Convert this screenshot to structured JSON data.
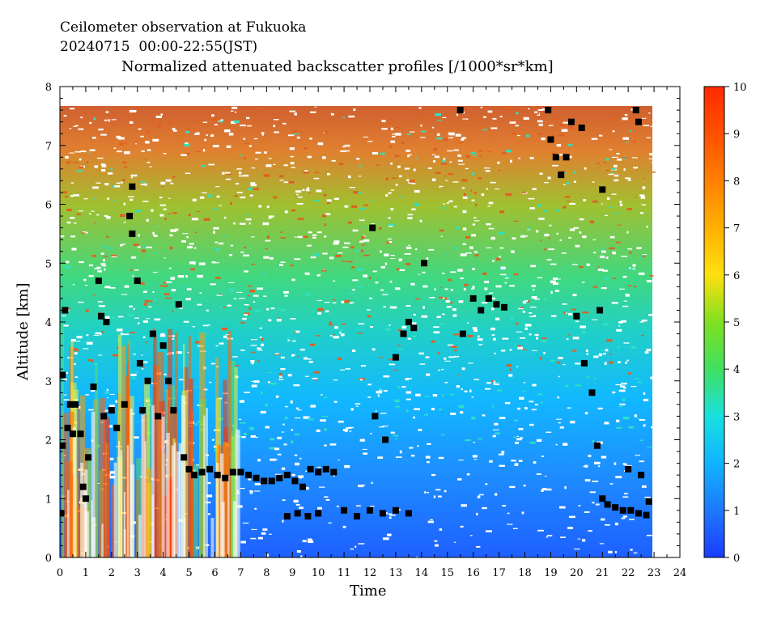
{
  "chart_data": {
    "type": "heatmap",
    "title_lines": [
      "Ceilometer observation at Fukuoka",
      "20240715  00:00-22:55(JST)",
      "Normalized attenuated backscatter profiles [/1000*sr*km]"
    ],
    "xlabel": "Time",
    "ylabel": "Altitude [km]",
    "xlim": [
      0,
      24
    ],
    "ylim": [
      0,
      8
    ],
    "x_ticks": [
      "0",
      "1",
      "2",
      "3",
      "4",
      "5",
      "6",
      "7",
      "8",
      "9",
      "10",
      "11",
      "12",
      "13",
      "14",
      "15",
      "16",
      "17",
      "18",
      "19",
      "20",
      "21",
      "22",
      "23",
      "24"
    ],
    "y_ticks": [
      "0",
      "1",
      "2",
      "3",
      "4",
      "5",
      "6",
      "7",
      "8"
    ],
    "colorbar": {
      "min": 0,
      "max": 10,
      "ticks": [
        "0",
        "1",
        "2",
        "3",
        "4",
        "5",
        "6",
        "7",
        "8",
        "9",
        "10"
      ],
      "colors": [
        "#1a3cff",
        "#1e78ff",
        "#10b4ff",
        "#19e0e0",
        "#40e060",
        "#80e020",
        "#ffe010",
        "#ffb000",
        "#ff8000",
        "#ff5000",
        "#ff2a00"
      ]
    },
    "cloud_base_points": [
      [
        0.05,
        0.75
      ],
      [
        0.1,
        1.9
      ],
      [
        0.1,
        3.1
      ],
      [
        0.2,
        4.2
      ],
      [
        0.3,
        2.2
      ],
      [
        0.4,
        2.6
      ],
      [
        0.5,
        2.1
      ],
      [
        0.6,
        2.6
      ],
      [
        0.8,
        2.1
      ],
      [
        0.9,
        1.2
      ],
      [
        1.0,
        1.0
      ],
      [
        1.1,
        1.7
      ],
      [
        1.3,
        2.9
      ],
      [
        1.5,
        4.7
      ],
      [
        1.6,
        4.1
      ],
      [
        1.7,
        2.4
      ],
      [
        1.8,
        4.0
      ],
      [
        2.0,
        2.5
      ],
      [
        2.2,
        2.2
      ],
      [
        2.5,
        2.6
      ],
      [
        2.7,
        5.8
      ],
      [
        2.8,
        6.3
      ],
      [
        2.8,
        5.5
      ],
      [
        3.0,
        4.7
      ],
      [
        3.1,
        3.3
      ],
      [
        3.2,
        2.5
      ],
      [
        3.4,
        3.0
      ],
      [
        3.6,
        3.8
      ],
      [
        3.8,
        2.4
      ],
      [
        4.0,
        3.6
      ],
      [
        4.2,
        3.0
      ],
      [
        4.4,
        2.5
      ],
      [
        4.6,
        4.3
      ],
      [
        4.8,
        1.7
      ],
      [
        5.0,
        1.5
      ],
      [
        5.2,
        1.4
      ],
      [
        5.5,
        1.45
      ],
      [
        5.8,
        1.5
      ],
      [
        6.1,
        1.4
      ],
      [
        6.4,
        1.35
      ],
      [
        6.7,
        1.45
      ],
      [
        7.0,
        1.45
      ],
      [
        7.3,
        1.4
      ],
      [
        7.6,
        1.35
      ],
      [
        7.9,
        1.3
      ],
      [
        8.2,
        1.3
      ],
      [
        8.5,
        1.35
      ],
      [
        8.8,
        1.4
      ],
      [
        9.1,
        1.3
      ],
      [
        9.4,
        1.2
      ],
      [
        9.7,
        1.5
      ],
      [
        10.0,
        1.45
      ],
      [
        10.3,
        1.5
      ],
      [
        10.6,
        1.45
      ],
      [
        8.8,
        0.7
      ],
      [
        9.2,
        0.75
      ],
      [
        9.6,
        0.7
      ],
      [
        10.0,
        0.75
      ],
      [
        11.0,
        0.8
      ],
      [
        11.5,
        0.7
      ],
      [
        12.0,
        0.8
      ],
      [
        12.5,
        0.75
      ],
      [
        13.0,
        0.8
      ],
      [
        13.5,
        0.75
      ],
      [
        12.2,
        2.4
      ],
      [
        12.6,
        2.0
      ],
      [
        13.0,
        3.4
      ],
      [
        13.3,
        3.8
      ],
      [
        13.5,
        4.0
      ],
      [
        13.7,
        3.9
      ],
      [
        14.1,
        5.0
      ],
      [
        12.1,
        5.6
      ],
      [
        15.5,
        7.6
      ],
      [
        15.6,
        3.8
      ],
      [
        16.0,
        4.4
      ],
      [
        16.3,
        4.2
      ],
      [
        16.6,
        4.4
      ],
      [
        16.9,
        4.3
      ],
      [
        17.2,
        4.25
      ],
      [
        18.9,
        7.6
      ],
      [
        19.0,
        7.1
      ],
      [
        19.2,
        6.8
      ],
      [
        19.4,
        6.5
      ],
      [
        19.6,
        6.8
      ],
      [
        19.8,
        7.4
      ],
      [
        20.2,
        7.3
      ],
      [
        20.0,
        4.1
      ],
      [
        20.3,
        3.3
      ],
      [
        20.6,
        2.8
      ],
      [
        20.8,
        1.9
      ],
      [
        20.9,
        4.2
      ],
      [
        21.0,
        1.0
      ],
      [
        21.2,
        0.9
      ],
      [
        21.5,
        0.85
      ],
      [
        21.8,
        0.8
      ],
      [
        22.1,
        0.8
      ],
      [
        22.4,
        0.75
      ],
      [
        22.7,
        0.72
      ],
      [
        21.0,
        6.25
      ],
      [
        22.3,
        7.6
      ],
      [
        22.4,
        7.4
      ],
      [
        22.0,
        1.5
      ],
      [
        22.5,
        1.4
      ],
      [
        22.8,
        0.95
      ]
    ]
  }
}
